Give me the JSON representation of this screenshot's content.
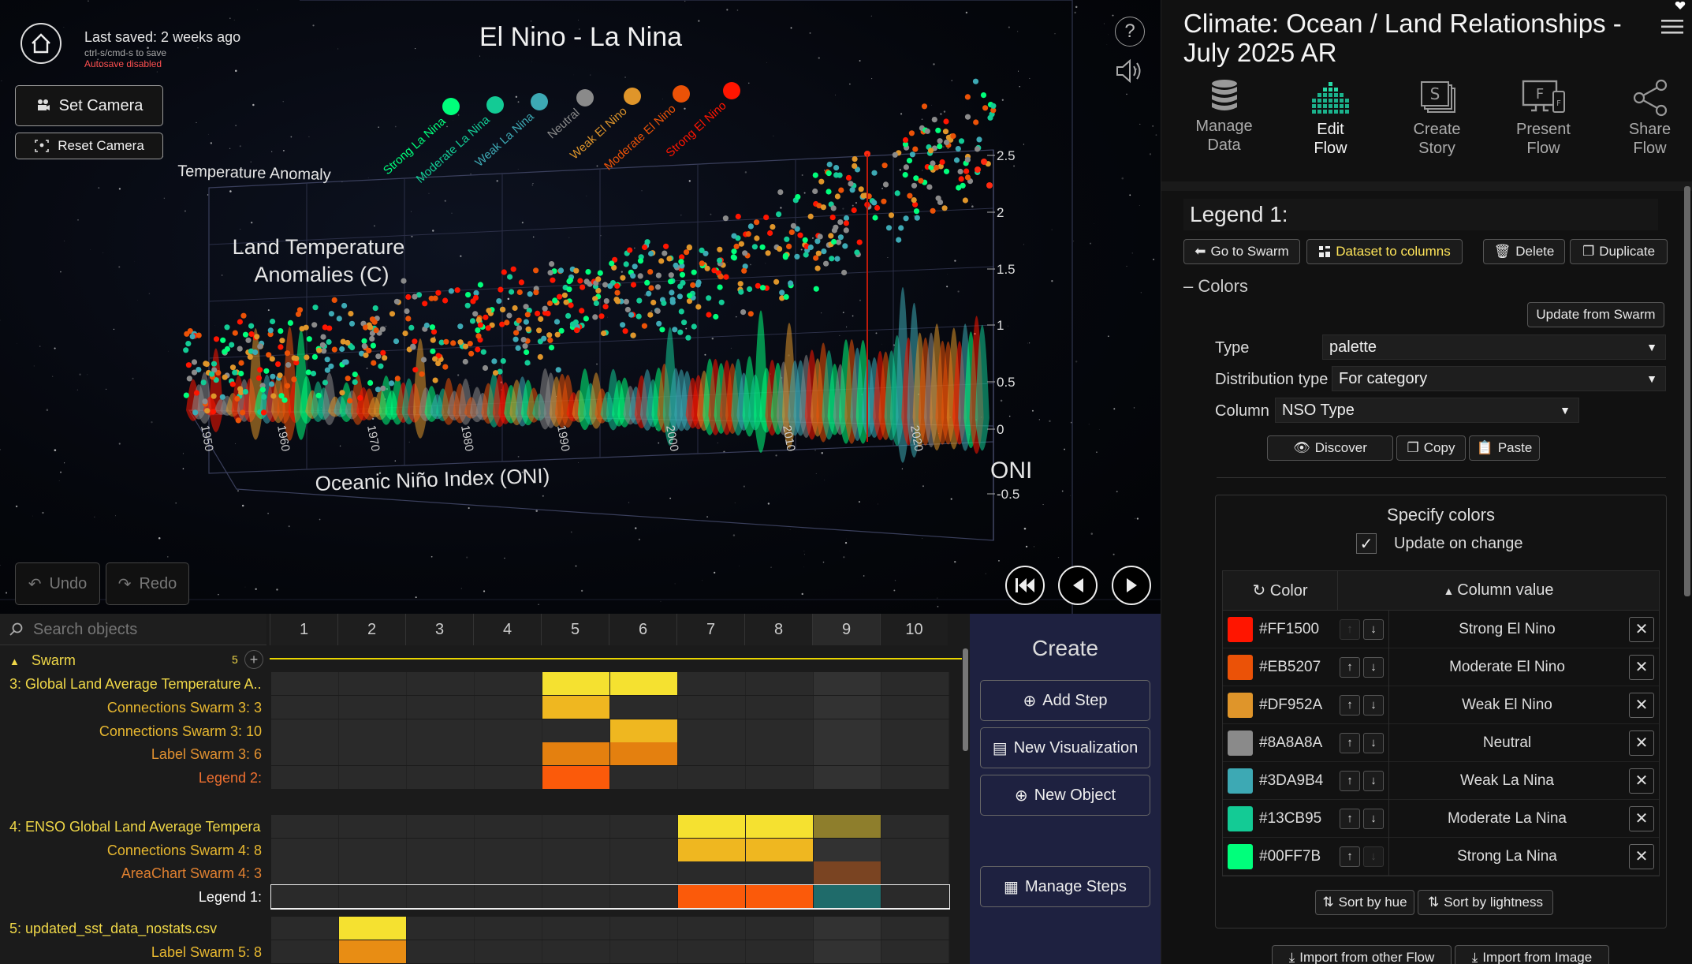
{
  "header": {
    "last_saved": "Last saved: 2 weeks ago",
    "save_hint": "ctrl-s/cmd-s to save",
    "autosave": "Autosave disabled",
    "set_camera": "Set Camera",
    "reset_camera": "Reset Camera",
    "undo": "Undo",
    "redo": "Redo",
    "help": "?"
  },
  "viz": {
    "title": "El Nino - La Nina",
    "z_axis_title": "Temperature Anomaly",
    "y_axis_title_1": "Land Temperature",
    "y_axis_title_2": "Anomalies (C)",
    "x_axis_title": "Oceanic Niño Index (ONI)",
    "oni_label": "ONI",
    "year_ticks": [
      "1950",
      "1960",
      "1970",
      "1980",
      "1990",
      "2000",
      "2010",
      "2020"
    ],
    "value_ticks": [
      "2.5",
      "2",
      "1.5",
      "1",
      "0.5",
      "0",
      "-0.5"
    ],
    "legend": [
      {
        "label": "Strong La Nina",
        "color": "#00FF7B"
      },
      {
        "label": "Moderate La Nina",
        "color": "#13CB95"
      },
      {
        "label": "Weak La Nina",
        "color": "#3DA9B4"
      },
      {
        "label": "Neutral",
        "color": "#8A8A8A"
      },
      {
        "label": "Weak El Nino",
        "color": "#DF952A"
      },
      {
        "label": "Moderate El Nino",
        "color": "#EB5207"
      },
      {
        "label": "Strong El Nino",
        "color": "#FF1500"
      }
    ]
  },
  "panel": {
    "doc_title": "Climate: Ocean / Land Relationships - July 2025 AR",
    "tools": [
      {
        "label1": "Manage",
        "label2": "Data"
      },
      {
        "label1": "Edit",
        "label2": "Flow"
      },
      {
        "label1": "Create",
        "label2": "Story"
      },
      {
        "label1": "Present",
        "label2": "Flow"
      },
      {
        "label1": "Share",
        "label2": "Flow"
      }
    ],
    "legend_name": "Legend 1:",
    "go_to_swarm": "Go to Swarm",
    "dataset_to_columns": "Dataset to columns",
    "delete": "Delete",
    "duplicate": "Duplicate",
    "colors_section": "Colors",
    "update_from_swarm": "Update from Swarm",
    "type_label": "Type",
    "type_value": "palette",
    "dist_label": "Distribution type",
    "dist_value": "For category",
    "column_label": "Column",
    "column_value": "NSO Type",
    "discover": "Discover",
    "copy": "Copy",
    "paste": "Paste",
    "specify_colors": "Specify colors",
    "update_on_change": "Update on change",
    "color_header": "Color",
    "column_value_header": "Column value",
    "colors": [
      {
        "hex": "#FF1500",
        "value": "Strong El Nino"
      },
      {
        "hex": "#EB5207",
        "value": "Moderate El Nino"
      },
      {
        "hex": "#DF952A",
        "value": "Weak El Nino"
      },
      {
        "hex": "#8A8A8A",
        "value": "Neutral"
      },
      {
        "hex": "#3DA9B4",
        "value": "Weak La Nina"
      },
      {
        "hex": "#13CB95",
        "value": "Moderate La Nina"
      },
      {
        "hex": "#00FF7B",
        "value": "Strong La Nina"
      }
    ],
    "sort_by_hue": "Sort by hue",
    "sort_by_lightness": "Sort by lightness",
    "import_other_flow": "Import from other Flow",
    "import_image": "Import from Image"
  },
  "timeline": {
    "search_placeholder": "Search objects",
    "steps": [
      "1",
      "2",
      "3",
      "4",
      "5",
      "6",
      "7",
      "8",
      "9",
      "10"
    ],
    "swarm_label": "Swarm",
    "swarm_count": "5",
    "objects": [
      {
        "label": "3: Global Land Average Temperature A...",
        "color": "#f0d848"
      },
      {
        "label": "Connections Swarm 3: 3",
        "color": "#e8b830"
      },
      {
        "label": "Connections Swarm 3: 10",
        "color": "#e8b830"
      },
      {
        "label": "Label Swarm 3: 6",
        "color": "#e09030"
      },
      {
        "label": "Legend 2:",
        "color": "#f07030"
      },
      {
        "label": "4: ENSO Global Land Average Tempera...",
        "color": "#f0d848"
      },
      {
        "label": "Connections Swarm 4: 8",
        "color": "#e8b830"
      },
      {
        "label": "AreaChart Swarm 4: 3",
        "color": "#e08030"
      },
      {
        "label": "Legend 1:",
        "color": "#ffffff"
      },
      {
        "label": "5: updated_sst_data_nostats.csv",
        "color": "#f0d848"
      },
      {
        "label": "Label Swarm 5: 8",
        "color": "#e8b830"
      }
    ]
  },
  "create": {
    "title": "Create",
    "add_step": "Add Step",
    "new_visualization": "New Visualization",
    "new_object": "New Object",
    "manage_steps": "Manage Steps"
  }
}
